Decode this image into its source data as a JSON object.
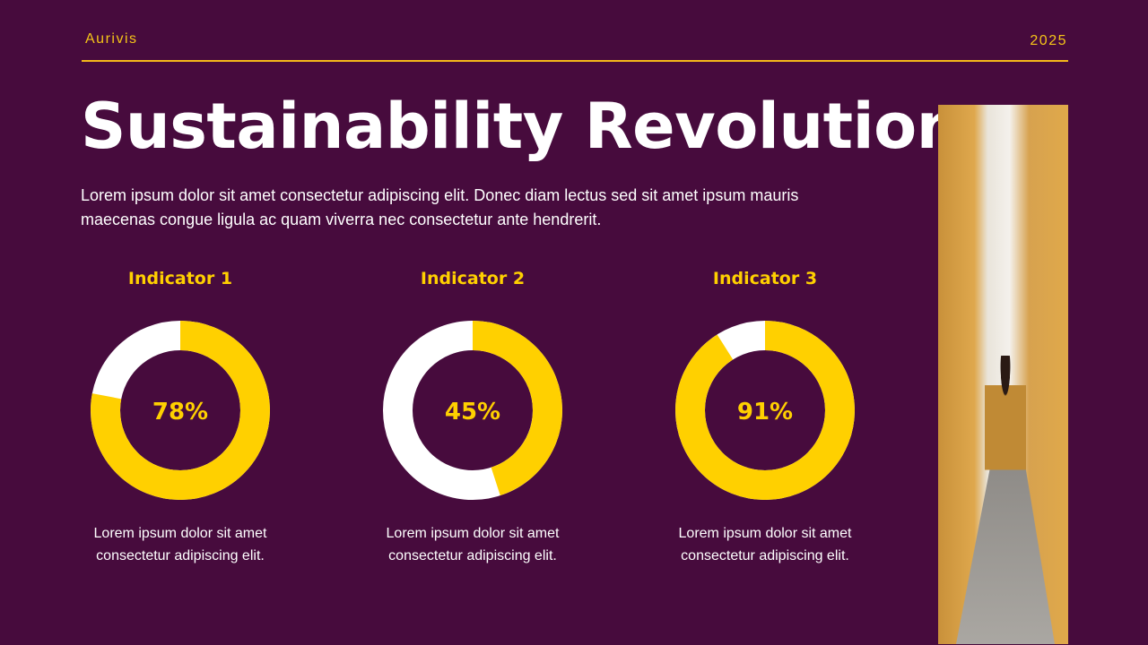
{
  "header": {
    "brand": "Aurivis",
    "year": "2025"
  },
  "title": "Sustainability Revolution",
  "intro": "Lorem ipsum dolor sit amet consectetur adipiscing elit. Donec diam lectus sed sit amet ipsum mauris maecenas congue ligula ac quam viverra nec consectetur ante hendrerit.",
  "colors": {
    "background": "#470b3d",
    "accent": "#ffd000",
    "remainder": "#ffffff"
  },
  "chart_data": [
    {
      "type": "pie",
      "title": "Indicator 1",
      "values": [
        78,
        22
      ],
      "label": "78%",
      "caption": "Lorem ipsum dolor sit amet consectetur adipiscing elit."
    },
    {
      "type": "pie",
      "title": "Indicator 2",
      "values": [
        45,
        55
      ],
      "label": "45%",
      "caption": "Lorem ipsum dolor sit amet consectetur adipiscing elit."
    },
    {
      "type": "pie",
      "title": "Indicator 3",
      "values": [
        91,
        9
      ],
      "label": "91%",
      "caption": "Lorem ipsum dolor sit amet consectetur adipiscing elit."
    }
  ]
}
